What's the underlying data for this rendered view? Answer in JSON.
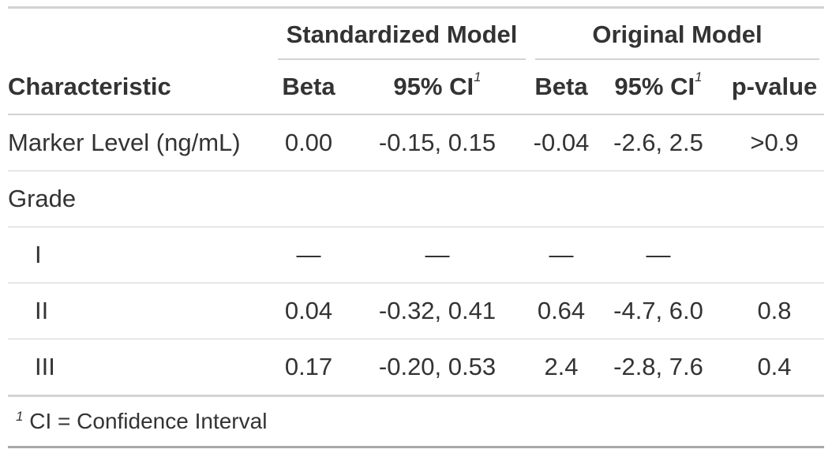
{
  "spanners": {
    "standardized": "Standardized Model",
    "original": "Original Model"
  },
  "columns": {
    "characteristic": "Characteristic",
    "beta_std": "Beta",
    "ci_std": "95% CI",
    "beta_orig": "Beta",
    "ci_orig": "95% CI",
    "p_value": "p-value",
    "ci_footnote_mark": "1"
  },
  "rows": [
    {
      "label": "Marker Level (ng/mL)",
      "beta_std": "0.00",
      "ci_std": "-0.15, 0.15",
      "beta_orig": "-0.04",
      "ci_orig": "-2.6, 2.5",
      "p": ">0.9"
    },
    {
      "label": "Grade",
      "beta_std": "",
      "ci_std": "",
      "beta_orig": "",
      "ci_orig": "",
      "p": ""
    },
    {
      "label": "I",
      "beta_std": "—",
      "ci_std": "—",
      "beta_orig": "—",
      "ci_orig": "—",
      "p": ""
    },
    {
      "label": "II",
      "beta_std": "0.04",
      "ci_std": "-0.32, 0.41",
      "beta_orig": "0.64",
      "ci_orig": "-4.7, 6.0",
      "p": "0.8"
    },
    {
      "label": "III",
      "beta_std": "0.17",
      "ci_std": "-0.20, 0.53",
      "beta_orig": "2.4",
      "ci_orig": "-2.8, 7.6",
      "p": "0.4"
    }
  ],
  "footnote": {
    "mark": "1",
    "text": "CI = Confidence Interval"
  }
}
